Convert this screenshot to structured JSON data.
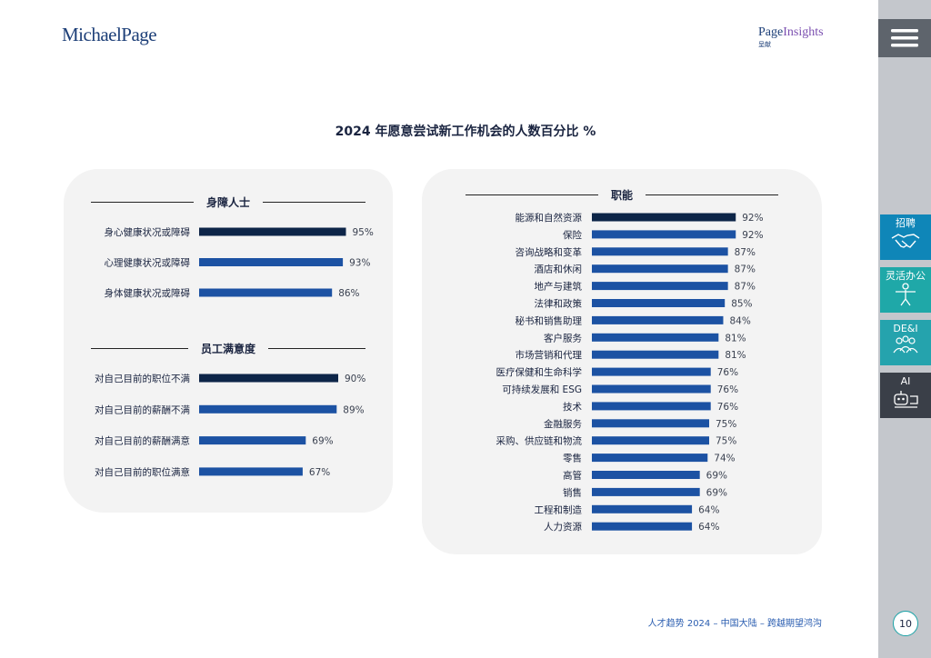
{
  "header": {
    "logo_left": "MichaelPage",
    "logo_right_a": "Page",
    "logo_right_b": "Insights",
    "logo_right_sub": "呈献"
  },
  "sidebar": {
    "tabs": [
      {
        "label": "招聘",
        "icon": "handshake-icon"
      },
      {
        "label": "灵活办公",
        "icon": "person-figure-icon"
      },
      {
        "label": "DE&I",
        "icon": "people-group-icon"
      },
      {
        "label": "AI",
        "icon": "robot-icon"
      }
    ]
  },
  "footer": {
    "text": "人才趋势 2024 – 中国大陆 – 跨越期望鸿沟",
    "page_number": "10"
  },
  "colors": {
    "dark_bar": "#0d2548",
    "blue_bar": "#1c52a3"
  },
  "chart_data": {
    "type": "bar",
    "title": "2024 年愿意尝试新工作机会的人数百分比 %",
    "groups": [
      {
        "name": "身障人士",
        "categories": [
          "身心健康状况或障碍",
          "心理健康状况或障碍",
          "身体健康状况或障碍"
        ],
        "values": [
          95,
          93,
          86
        ],
        "labels": [
          "95%",
          "93%",
          "86%"
        ],
        "highlight_index": 0
      },
      {
        "name": "员工满意度",
        "categories": [
          "对自己目前的职位不满",
          "对自己目前的薪酬不满",
          "对自己目前的薪酬满意",
          "对自己目前的职位满意"
        ],
        "values": [
          90,
          89,
          69,
          67
        ],
        "labels": [
          "90%",
          "89%",
          "69%",
          "67%"
        ],
        "highlight_index": 0
      },
      {
        "name": "职能",
        "categories": [
          "能源和自然资源",
          "保险",
          "咨询战略和变革",
          "酒店和休闲",
          "地产与建筑",
          "法律和政策",
          "秘书和销售助理",
          "客户服务",
          "市场营销和代理",
          "医疗保健和生命科学",
          "可持续发展和 ESG",
          "技术",
          "金融服务",
          "采购、供应链和物流",
          "零售",
          "高管",
          "销售",
          "工程和制造",
          "人力资源"
        ],
        "values": [
          92,
          92,
          87,
          87,
          87,
          85,
          84,
          81,
          81,
          76,
          76,
          76,
          75,
          75,
          74,
          69,
          69,
          64,
          64
        ],
        "labels": [
          "92%",
          "92%",
          "87%",
          "87%",
          "87%",
          "85%",
          "84%",
          "81%",
          "81%",
          "76%",
          "76%",
          "76%",
          "75%",
          "75%",
          "74%",
          "69%",
          "69%",
          "64%",
          "64%"
        ],
        "highlight_index": 0
      }
    ]
  }
}
